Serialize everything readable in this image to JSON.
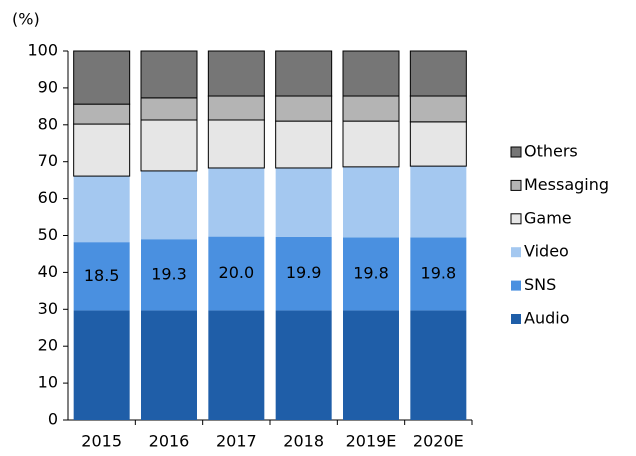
{
  "chart_data": {
    "type": "stacked_bar",
    "y_axis_label": "(%)",
    "categories": [
      "2015",
      "2016",
      "2017",
      "2018",
      "2019E",
      "2020E"
    ],
    "series": [
      {
        "name": "Audio",
        "color": "#1f5ea8",
        "values": [
          29.7,
          29.7,
          29.7,
          29.7,
          29.7,
          29.7
        ]
      },
      {
        "name": "SNS",
        "color": "#4a90e0",
        "values": [
          18.5,
          19.3,
          20.0,
          19.9,
          19.8,
          19.8
        ],
        "value_labels": [
          "18.5",
          "19.3",
          "20.0",
          "19.9",
          "19.8",
          "19.8"
        ]
      },
      {
        "name": "Video",
        "color": "#a4c8f0",
        "values": [
          17.9,
          18.5,
          18.6,
          18.7,
          19.1,
          19.3
        ]
      },
      {
        "name": "Game",
        "color": "#e6e6e6",
        "values": [
          14.1,
          13.8,
          13.0,
          12.7,
          12.4,
          12.0
        ]
      },
      {
        "name": "Messaging",
        "color": "#b4b4b4",
        "values": [
          5.4,
          6.0,
          6.5,
          6.8,
          6.8,
          7.0
        ]
      },
      {
        "name": "Others",
        "color": "#767676",
        "values": [
          14.4,
          12.7,
          12.2,
          12.2,
          12.2,
          12.2
        ]
      }
    ],
    "ylim": [
      0,
      100
    ],
    "yticks": [
      0,
      10,
      20,
      30,
      40,
      50,
      60,
      70,
      80,
      90,
      100
    ],
    "legend": "right"
  }
}
